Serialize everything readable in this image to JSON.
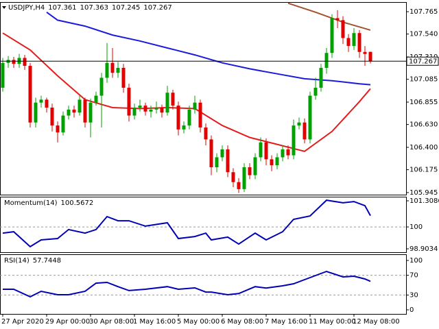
{
  "chart_data": [
    {
      "type": "candlestick",
      "title": "USDJPY,H4",
      "open": [
        107.0,
        107.25,
        107.28,
        107.24,
        107.3,
        107.22,
        106.65,
        106.85,
        106.88,
        106.8,
        106.62,
        106.55,
        106.72,
        106.78,
        106.75,
        106.88,
        106.65,
        106.85,
        106.92,
        107.1,
        107.25,
        107.15,
        107.2,
        107.0,
        106.72,
        106.8,
        106.82,
        106.76,
        106.78,
        106.8,
        106.75,
        106.95,
        106.82,
        106.58,
        106.62,
        106.78,
        106.85,
        106.6,
        106.48,
        106.2,
        106.3,
        106.38,
        106.15,
        106.05,
        105.98,
        106.2,
        106.12,
        106.3,
        106.45,
        106.28,
        106.22,
        106.3,
        106.38,
        106.32,
        106.62,
        106.65,
        106.48,
        106.92,
        107.0,
        107.2,
        107.35,
        107.7,
        107.68,
        107.5,
        107.42,
        107.55,
        107.36,
        107.361
      ],
      "high": [
        107.3,
        107.32,
        107.31,
        107.34,
        107.33,
        107.25,
        106.9,
        106.92,
        106.9,
        106.84,
        106.66,
        106.76,
        106.82,
        106.82,
        106.92,
        106.9,
        106.89,
        106.96,
        107.15,
        107.45,
        107.4,
        107.26,
        107.24,
        107.04,
        106.84,
        106.88,
        106.85,
        106.82,
        106.86,
        106.83,
        107.02,
        106.98,
        106.86,
        106.66,
        106.82,
        106.92,
        106.88,
        106.64,
        106.52,
        106.34,
        106.42,
        106.42,
        106.19,
        106.09,
        106.24,
        106.24,
        106.34,
        106.5,
        106.49,
        106.32,
        106.34,
        106.42,
        106.42,
        106.68,
        106.7,
        106.69,
        106.96,
        107.1,
        107.24,
        107.4,
        107.74,
        107.78,
        107.72,
        107.54,
        107.6,
        107.58,
        107.42,
        107.363
      ],
      "low": [
        106.96,
        107.2,
        107.2,
        107.2,
        107.18,
        106.6,
        106.6,
        106.8,
        106.75,
        106.56,
        106.45,
        106.52,
        106.68,
        106.7,
        106.72,
        106.6,
        106.5,
        106.82,
        106.6,
        107.05,
        107.1,
        107.1,
        106.95,
        106.66,
        106.68,
        106.76,
        106.72,
        106.7,
        106.74,
        106.7,
        106.72,
        106.78,
        106.52,
        106.54,
        106.58,
        106.74,
        106.55,
        106.42,
        106.12,
        106.15,
        106.26,
        106.1,
        106.0,
        105.94,
        105.95,
        106.08,
        106.08,
        106.26,
        106.22,
        106.16,
        106.18,
        106.26,
        106.28,
        106.28,
        106.58,
        106.44,
        106.44,
        106.88,
        106.96,
        107.14,
        107.3,
        107.6,
        107.44,
        107.36,
        107.38,
        107.3,
        107.22,
        107.245
      ],
      "close": [
        107.25,
        107.28,
        107.24,
        107.3,
        107.22,
        106.65,
        106.85,
        106.88,
        106.8,
        106.62,
        106.55,
        106.72,
        106.78,
        106.75,
        106.88,
        106.65,
        106.85,
        106.92,
        107.1,
        107.25,
        107.15,
        107.2,
        107.0,
        106.72,
        106.8,
        106.82,
        106.76,
        106.78,
        106.8,
        106.75,
        106.95,
        106.82,
        106.58,
        106.62,
        106.78,
        106.85,
        106.6,
        106.48,
        106.2,
        106.3,
        106.38,
        106.15,
        106.05,
        105.98,
        106.2,
        106.12,
        106.3,
        106.45,
        106.28,
        106.22,
        106.3,
        106.38,
        106.32,
        106.62,
        106.65,
        106.48,
        106.92,
        107.0,
        107.2,
        107.35,
        107.7,
        107.68,
        107.5,
        107.42,
        107.55,
        107.36,
        107.34,
        107.267
      ],
      "up_color": "#00a000",
      "down_color": "#e00000",
      "xlim": [
        -0.5,
        73.5
      ],
      "ylim": [
        105.924,
        107.862
      ],
      "yticks": [
        105.945,
        106.175,
        {
          "value": 106.4,
          "label": "106.400"
        },
        {
          "value": 106.63,
          "label": "106.630"
        },
        106.855,
        107.085,
        {
          "value": 107.31,
          "label": "107.310"
        },
        {
          "value": 107.54,
          "label": "107.540"
        },
        107.765
      ],
      "series": [
        {
          "color": "#e41b1b",
          "x": [
            0,
            5,
            10,
            15,
            20,
            25,
            30,
            35,
            40,
            45,
            50,
            55,
            60,
            65,
            67
          ],
          "values": [
            107.55,
            107.38,
            107.12,
            106.88,
            106.8,
            106.79,
            106.8,
            106.79,
            106.62,
            106.5,
            106.43,
            106.36,
            106.56,
            106.86,
            106.99
          ]
        },
        {
          "color": "#1a1adc",
          "x": [
            8,
            10,
            15,
            20,
            25,
            30,
            35,
            40,
            45,
            50,
            55,
            60,
            65,
            67
          ],
          "values": [
            107.76,
            107.68,
            107.62,
            107.53,
            107.47,
            107.4,
            107.33,
            107.25,
            107.19,
            107.14,
            107.09,
            107.07,
            107.04,
            107.03
          ]
        },
        {
          "color": "#a0522d",
          "x": [
            52,
            57,
            62,
            67
          ],
          "values": [
            107.85,
            107.76,
            107.66,
            107.58
          ]
        }
      ]
    },
    {
      "type": "line",
      "title": "Momentum(14)",
      "xlim": [
        -0.5,
        73.5
      ],
      "ylim": [
        98.732,
        101.515
      ],
      "yticks": [
        98.9034,
        100,
        101.3086
      ],
      "levels": [
        100
      ],
      "series": [
        {
          "color": "#0000b4",
          "x": [
            0,
            2,
            5,
            7,
            10,
            12,
            15,
            17,
            19,
            21,
            23,
            26,
            30,
            32,
            35,
            37,
            38,
            41,
            43,
            46,
            48,
            51,
            53,
            56,
            59,
            62,
            64,
            66,
            67
          ],
          "values": [
            99.69,
            99.76,
            99.01,
            99.35,
            99.42,
            99.87,
            99.69,
            99.87,
            100.52,
            100.31,
            100.31,
            100.04,
            100.21,
            99.42,
            99.52,
            99.69,
            99.35,
            99.49,
            99.14,
            99.69,
            99.35,
            99.76,
            100.38,
            100.55,
            101.34,
            101.21,
            101.27,
            101.07,
            100.5672
          ]
        }
      ]
    },
    {
      "type": "line",
      "title": "RSI(14)",
      "xlim": [
        -0.5,
        73.5
      ],
      "ylim": [
        -8.3,
        112.5
      ],
      "yticks": [
        0,
        30,
        70,
        100
      ],
      "levels": [
        30,
        70
      ],
      "series": [
        {
          "color": "#0000b4",
          "x": [
            0,
            2,
            5,
            7,
            10,
            12,
            15,
            17,
            19,
            21,
            23,
            26,
            30,
            32,
            35,
            37,
            38,
            41,
            43,
            46,
            48,
            51,
            53,
            56,
            59,
            62,
            64,
            66,
            67
          ],
          "values": [
            41.7,
            41.7,
            26.4,
            37.5,
            30.6,
            30.6,
            37.5,
            54,
            55.6,
            47,
            39,
            41.7,
            47,
            41.7,
            44.4,
            36,
            36,
            30.6,
            33,
            47,
            44,
            48.6,
            52.8,
            65.3,
            77.8,
            66.7,
            68,
            62.5,
            57.7448
          ]
        }
      ],
      "xticks": [
        {
          "value": 0,
          "label": "27 Apr 2020"
        },
        {
          "value": 8,
          "label": "29 Apr 00:00"
        },
        {
          "value": 16,
          "label": "30 Apr 08:00"
        },
        {
          "value": 24,
          "label": "1 May 16:00"
        },
        {
          "value": 32,
          "label": "5 May 00:00"
        },
        {
          "value": 40,
          "label": "6 May 08:00"
        },
        {
          "value": 48,
          "label": "7 May 16:00"
        },
        {
          "value": 56,
          "label": "11 May 00:00"
        },
        {
          "value": 64,
          "label": "12 May 08:00"
        }
      ]
    }
  ]
}
